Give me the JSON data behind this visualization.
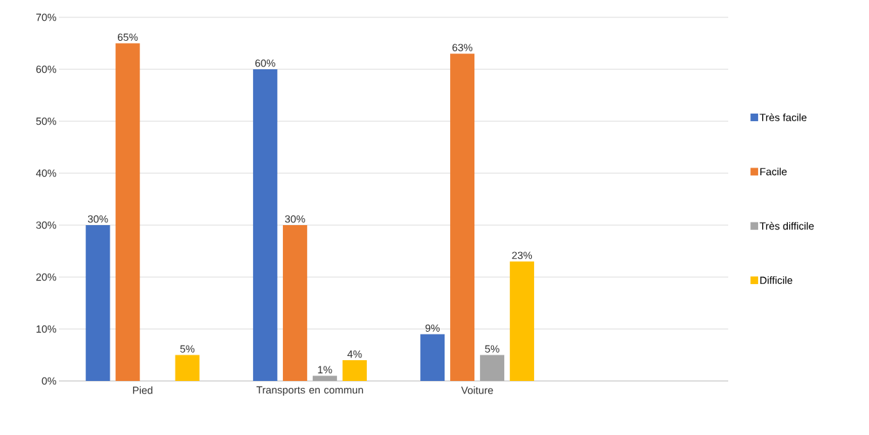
{
  "chart_data": {
    "type": "bar",
    "categories": [
      "Pied",
      "Transports en commun",
      "Voiture",
      null
    ],
    "series": [
      {
        "name": "Très facile",
        "color": "#4472c4",
        "values": [
          30,
          60,
          9,
          null
        ],
        "value_labels": [
          "30%",
          "60%",
          "9%",
          null
        ]
      },
      {
        "name": "Facile",
        "color": "#ed7d31",
        "values": [
          65,
          30,
          63,
          null
        ],
        "value_labels": [
          "65%",
          "30%",
          "63%",
          null
        ]
      },
      {
        "name": "Très difficile",
        "color": "#a5a5a5",
        "values": [
          null,
          1,
          5,
          null
        ],
        "value_labels": [
          null,
          "1%",
          "5%",
          null
        ]
      },
      {
        "name": "Difficile",
        "color": "#ffc000",
        "values": [
          5,
          4,
          23,
          null
        ],
        "value_labels": [
          "5%",
          "4%",
          "23%",
          null
        ]
      }
    ],
    "ylim": [
      0,
      70
    ],
    "yticks": [
      {
        "value": 0,
        "label": "0%"
      },
      {
        "value": 10,
        "label": "10%"
      },
      {
        "value": 20,
        "label": "20%"
      },
      {
        "value": 30,
        "label": "30%"
      },
      {
        "value": 40,
        "label": "40%"
      },
      {
        "value": 50,
        "label": "50%"
      },
      {
        "value": 60,
        "label": "60%"
      },
      {
        "value": 70,
        "label": "70%"
      }
    ],
    "grid": "y",
    "legend": "right"
  }
}
